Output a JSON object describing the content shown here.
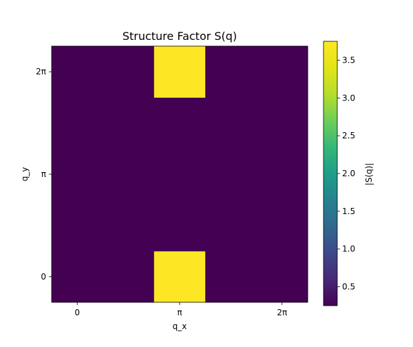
{
  "chart_data": {
    "type": "heatmap",
    "title": "Structure Factor S(q)",
    "xlabel": "q_x",
    "ylabel": "q_y",
    "x_ticks": [
      "0",
      "π",
      "2π"
    ],
    "y_ticks": [
      "0",
      "π",
      "2π"
    ],
    "x_values": [
      0,
      0.5,
      1,
      1.5,
      2
    ],
    "y_values": [
      0,
      0.5,
      1,
      1.5,
      2
    ],
    "values": [
      [
        0.25,
        0.25,
        3.75,
        0.25,
        0.25
      ],
      [
        0.25,
        0.25,
        0.25,
        0.25,
        0.25
      ],
      [
        0.25,
        0.25,
        0.25,
        0.25,
        0.25
      ],
      [
        0.25,
        0.25,
        0.25,
        0.25,
        0.25
      ],
      [
        0.25,
        0.25,
        3.75,
        0.25,
        0.25
      ]
    ],
    "colormap": "viridis",
    "colormap_colors": {
      "low": "#440154",
      "high": "#fde725"
    },
    "colorbar": {
      "label": "|S(q)|",
      "ticks": [
        0.5,
        1.0,
        1.5,
        2.0,
        2.5,
        3.0,
        3.5
      ],
      "range": [
        0.25,
        3.75
      ]
    },
    "grid": false
  }
}
